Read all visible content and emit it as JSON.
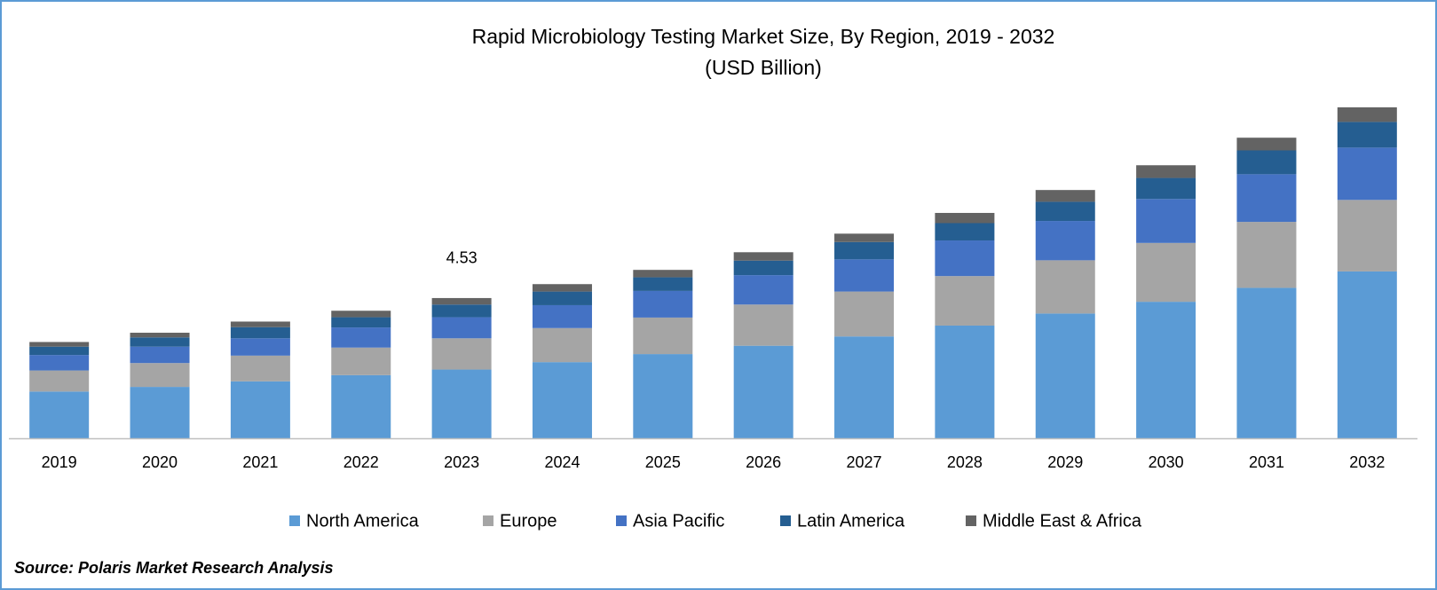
{
  "chart_data": {
    "type": "stacked_bar",
    "title": "Rapid Microbiology Testing Market Size, By Region, 2019 - 2032",
    "subtitle": "(USD Billion)",
    "categories": [
      "2019",
      "2020",
      "2021",
      "2022",
      "2023",
      "2024",
      "2025",
      "2026",
      "2027",
      "2028",
      "2029",
      "2030",
      "2031",
      "2032"
    ],
    "series": [
      {
        "name": "North America",
        "color": "#5b9bd5",
        "values": [
          1.51,
          1.66,
          1.84,
          2.04,
          2.22,
          2.46,
          2.72,
          2.99,
          3.29,
          3.64,
          4.03,
          4.41,
          4.86,
          5.39
        ]
      },
      {
        "name": "Europe",
        "color": "#a5a5a5",
        "values": [
          0.68,
          0.77,
          0.83,
          0.89,
          1.01,
          1.1,
          1.18,
          1.33,
          1.45,
          1.6,
          1.72,
          1.9,
          2.13,
          2.31
        ]
      },
      {
        "name": "Asia Pacific",
        "color": "#4472c4",
        "values": [
          0.5,
          0.53,
          0.56,
          0.65,
          0.68,
          0.74,
          0.86,
          0.95,
          1.04,
          1.15,
          1.27,
          1.42,
          1.54,
          1.69
        ]
      },
      {
        "name": "Latin America",
        "color": "#255e91",
        "values": [
          0.27,
          0.3,
          0.36,
          0.33,
          0.41,
          0.44,
          0.44,
          0.47,
          0.56,
          0.56,
          0.62,
          0.68,
          0.77,
          0.83
        ]
      },
      {
        "name": "Middle East & Africa",
        "color": "#636363",
        "values": [
          0.15,
          0.15,
          0.18,
          0.21,
          0.21,
          0.24,
          0.24,
          0.27,
          0.27,
          0.33,
          0.38,
          0.41,
          0.41,
          0.47
        ]
      }
    ],
    "annotations": [
      {
        "category": "2023",
        "value": 4.53
      }
    ],
    "legend": "bottom",
    "source": "Source: Polaris Market Research Analysis"
  }
}
